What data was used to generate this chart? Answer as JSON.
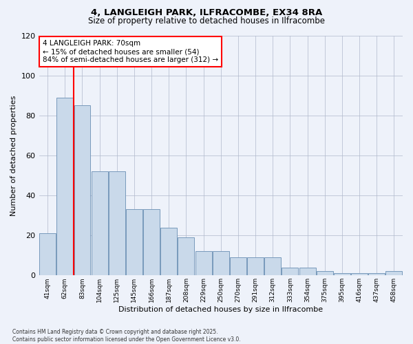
{
  "title_line1": "4, LANGLEIGH PARK, ILFRACOMBE, EX34 8RA",
  "title_line2": "Size of property relative to detached houses in Ilfracombe",
  "xlabel": "Distribution of detached houses by size in Ilfracombe",
  "ylabel": "Number of detached properties",
  "categories": [
    "41sqm",
    "62sqm",
    "83sqm",
    "104sqm",
    "125sqm",
    "145sqm",
    "166sqm",
    "187sqm",
    "208sqm",
    "229sqm",
    "250sqm",
    "270sqm",
    "291sqm",
    "312sqm",
    "333sqm",
    "354sqm",
    "375sqm",
    "395sqm",
    "416sqm",
    "437sqm",
    "458sqm"
  ],
  "values": [
    21,
    89,
    85,
    52,
    52,
    33,
    33,
    24,
    19,
    12,
    12,
    9,
    9,
    9,
    4,
    4,
    2,
    1,
    1,
    1,
    2
  ],
  "bar_color": "#c9d9ea",
  "bar_edge_color": "#7799bb",
  "vline_x": 1.5,
  "vline_color": "red",
  "ylim": [
    0,
    120
  ],
  "yticks": [
    0,
    20,
    40,
    60,
    80,
    100,
    120
  ],
  "annotation_text": "4 LANGLEIGH PARK: 70sqm\n← 15% of detached houses are smaller (54)\n84% of semi-detached houses are larger (312) →",
  "annotation_box_color": "white",
  "annotation_box_edge_color": "red",
  "footer_line1": "Contains HM Land Registry data © Crown copyright and database right 2025.",
  "footer_line2": "Contains public sector information licensed under the Open Government Licence v3.0.",
  "background_color": "#eef2fa"
}
